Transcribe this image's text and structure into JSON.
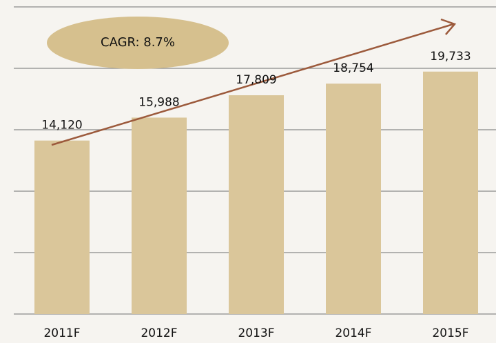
{
  "chart_data": {
    "type": "bar",
    "categories": [
      "2011F",
      "2012F",
      "2013F",
      "2014F",
      "2015F"
    ],
    "values": [
      14120,
      15988,
      17809,
      18754,
      19733
    ],
    "value_labels": [
      "14,120",
      "15,988",
      "17,809",
      "18,754",
      "19,733"
    ],
    "color": "#dac69a",
    "ylim": [
      0,
      25000
    ],
    "yticks": [
      0,
      5000,
      10000,
      15000,
      20000,
      25000
    ],
    "grid": true,
    "annotation": "CAGR: 8.7%"
  }
}
